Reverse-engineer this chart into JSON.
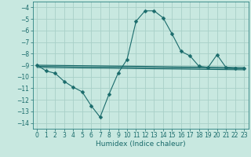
{
  "xlabel": "Humidex (Indice chaleur)",
  "background_color": "#c8e8e0",
  "grid_color": "#a8d0c8",
  "line_color": "#1a6b6b",
  "spine_color": "#2a8080",
  "xlim": [
    -0.5,
    23.5
  ],
  "ylim": [
    -14.5,
    -3.5
  ],
  "xticks": [
    0,
    1,
    2,
    3,
    4,
    5,
    6,
    7,
    8,
    9,
    10,
    11,
    12,
    13,
    14,
    15,
    16,
    17,
    18,
    19,
    20,
    21,
    22,
    23
  ],
  "yticks": [
    -4,
    -5,
    -6,
    -7,
    -8,
    -9,
    -10,
    -11,
    -12,
    -13,
    -14
  ],
  "main_line": {
    "x": [
      0,
      1,
      2,
      3,
      4,
      5,
      6,
      7,
      8,
      9,
      10,
      11,
      12,
      13,
      14,
      15,
      16,
      17,
      18,
      19,
      20,
      21,
      22,
      23
    ],
    "y": [
      -9.0,
      -9.5,
      -9.7,
      -10.4,
      -10.9,
      -11.3,
      -12.5,
      -13.5,
      -11.5,
      -9.7,
      -8.5,
      -5.2,
      -4.3,
      -4.3,
      -4.9,
      -6.3,
      -7.8,
      -8.2,
      -9.1,
      -9.2,
      -8.1,
      -9.2,
      -9.3,
      -9.3
    ]
  },
  "straight_lines": [
    {
      "x": [
        0,
        23
      ],
      "y": [
        -9.0,
        -9.2
      ]
    },
    {
      "x": [
        0,
        23
      ],
      "y": [
        -9.1,
        -9.3
      ]
    },
    {
      "x": [
        0,
        23
      ],
      "y": [
        -9.2,
        -9.4
      ]
    }
  ],
  "marker": "D",
  "markersize": 2.5,
  "linewidth": 0.8,
  "label_fontsize": 6.5,
  "tick_fontsize": 5.5
}
